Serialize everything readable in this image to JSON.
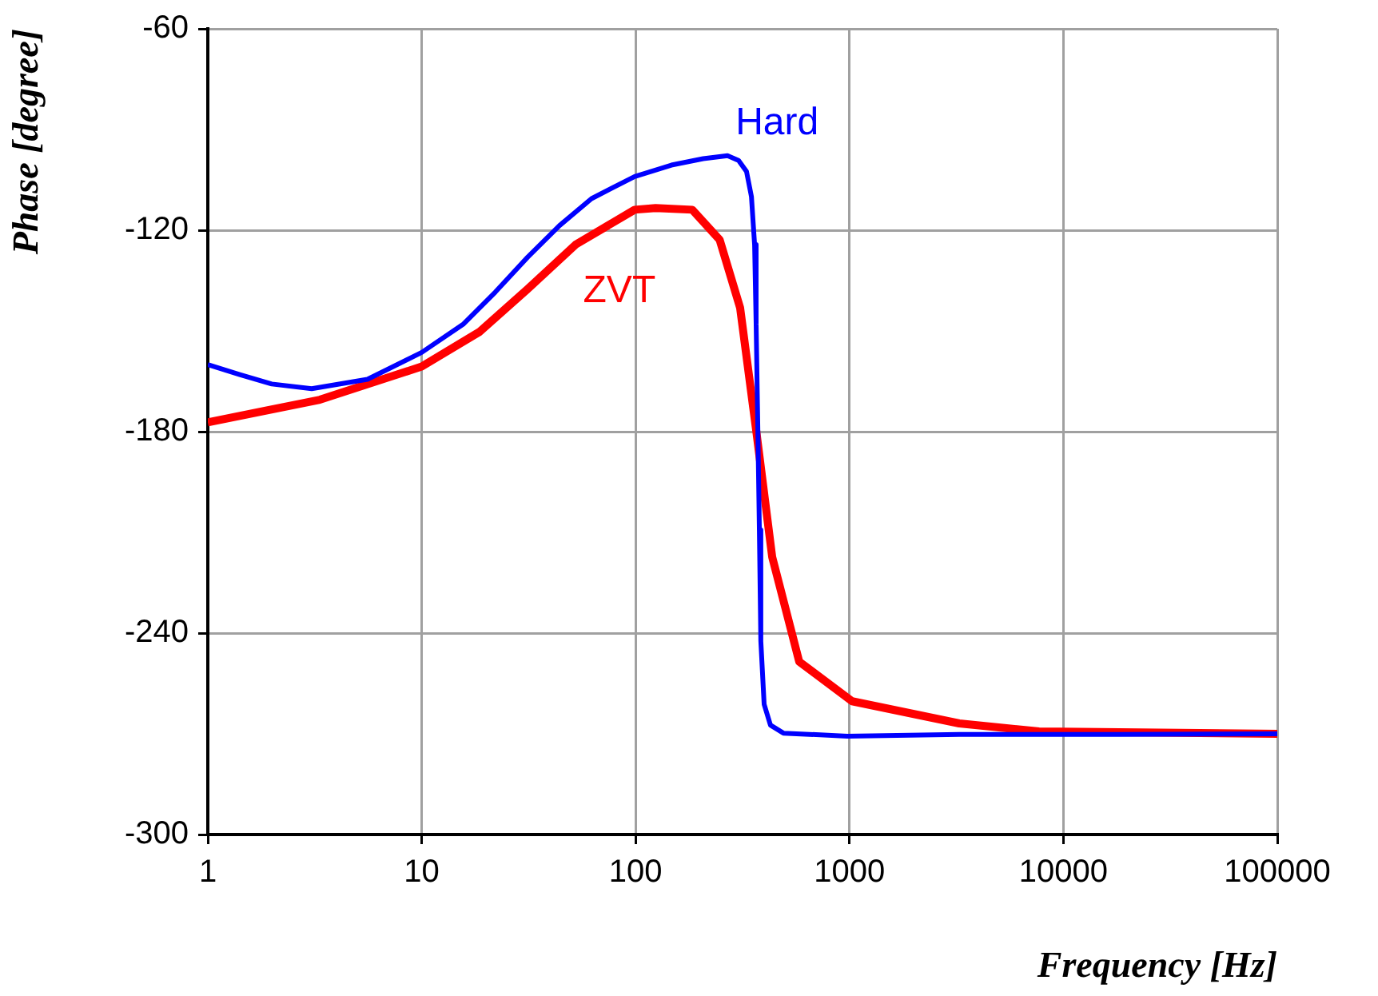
{
  "chart_data": {
    "type": "line",
    "xlabel": "Frequency [Hz]",
    "ylabel": "Phase [degree]",
    "log": "x",
    "xlim": [
      1,
      100000
    ],
    "xticks": [
      1,
      10,
      100,
      1000,
      10000,
      100000
    ],
    "ylim": [
      -300,
      -60
    ],
    "yticks": [
      -300,
      -240,
      -180,
      -120,
      -60
    ],
    "grid": true,
    "legend": false,
    "marker": "none",
    "line_style": "solid",
    "series": [
      {
        "name": "Hard",
        "color": "#0000ff",
        "x": [
          1,
          1.41,
          1.99,
          3.06,
          5.58,
          10,
          15.7,
          22.1,
          31.3,
          44.1,
          62.2,
          99,
          147,
          207,
          269,
          303,
          330,
          348,
          360,
          366,
          373,
          379,
          385,
          399,
          427,
          491,
          977,
          3260,
          18200,
          100000
        ],
        "values": [
          -160,
          -163,
          -165.8,
          -167.2,
          -164.4,
          -156.4,
          -147.9,
          -138.4,
          -128,
          -118.6,
          -110.6,
          -104,
          -100.6,
          -98.7,
          -97.8,
          -99.2,
          -102.5,
          -110,
          -124.3,
          -147.9,
          -180,
          -209.3,
          -242.4,
          -261.2,
          -267.4,
          -269.8,
          -270.7,
          -270.2,
          -270.2,
          -270
        ]
      },
      {
        "name": "ZVT",
        "color": "#ff0000",
        "x": [
          1,
          3.34,
          10,
          18.7,
          31.3,
          52.4,
          99,
          124,
          184,
          247,
          308,
          366,
          435,
          582,
          1028,
          3260,
          7690,
          100000
        ],
        "values": [
          -177.2,
          -170.5,
          -160.6,
          -150.2,
          -137.5,
          -124.3,
          -113.9,
          -113.4,
          -113.9,
          -122.8,
          -143.1,
          -179.5,
          -217.3,
          -248.5,
          -260.3,
          -266.9,
          -269.3,
          -270
        ]
      }
    ]
  }
}
